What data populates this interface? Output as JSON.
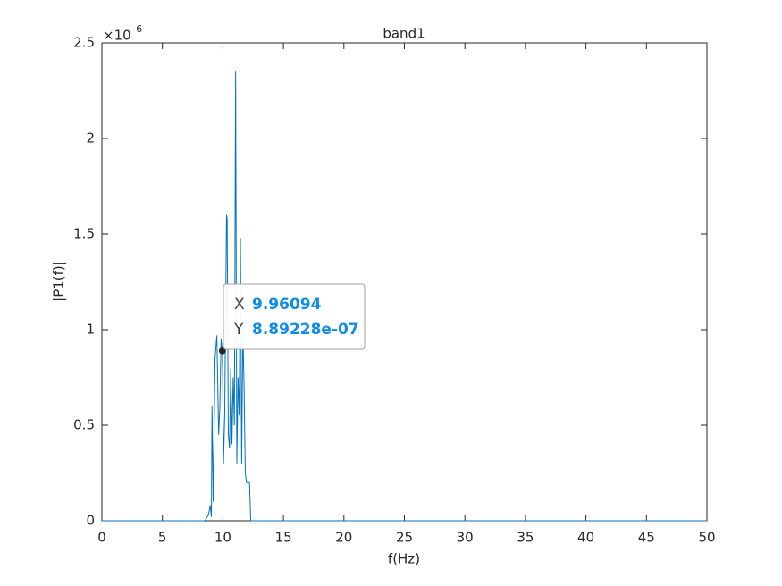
{
  "chart_data": {
    "type": "line",
    "title": "band1",
    "x_label": "f(Hz)",
    "y_label": "|P1(f)|",
    "y_multiplier": "×10",
    "y_multiplier_exponent": "−6",
    "x": [
      0,
      8.5,
      8.8,
      8.95,
      9.05,
      9.1,
      9.2,
      9.35,
      9.5,
      9.65,
      9.75,
      9.85,
      9.96094,
      10.05,
      10.15,
      10.3,
      10.35,
      10.45,
      10.55,
      10.65,
      10.75,
      10.85,
      10.95,
      11.05,
      11.15,
      11.25,
      11.35,
      11.45,
      11.55,
      11.65,
      11.75,
      11.85,
      11.95,
      12.2,
      12.3,
      50
    ],
    "values": [
      0,
      0,
      0.03,
      0.08,
      0.02,
      0.6,
      0.1,
      0.85,
      0.97,
      0.45,
      0.6,
      0.95,
      0.889228,
      0.3,
      0.55,
      1.6,
      1.58,
      0.45,
      0.38,
      0.8,
      0.4,
      0.75,
      0.5,
      2.35,
      0.3,
      0.75,
      0.55,
      1.48,
      0.3,
      1.0,
      0.7,
      0.25,
      0.2,
      0.2,
      0,
      0
    ],
    "color": "#0072bd",
    "xlim": [
      0,
      50
    ],
    "xticks": [
      0,
      5,
      10,
      15,
      20,
      25,
      30,
      35,
      40,
      45,
      50
    ],
    "ylim": [
      0,
      2.5
    ],
    "yticks": [
      0,
      0.5,
      1,
      1.5,
      2,
      2.5
    ],
    "grid": false,
    "datatip": {
      "x": 9.96094,
      "y": 0.889228,
      "x_name": "X",
      "x_text": "9.96094",
      "y_name": "Y",
      "y_text": "8.89228e-07"
    }
  }
}
